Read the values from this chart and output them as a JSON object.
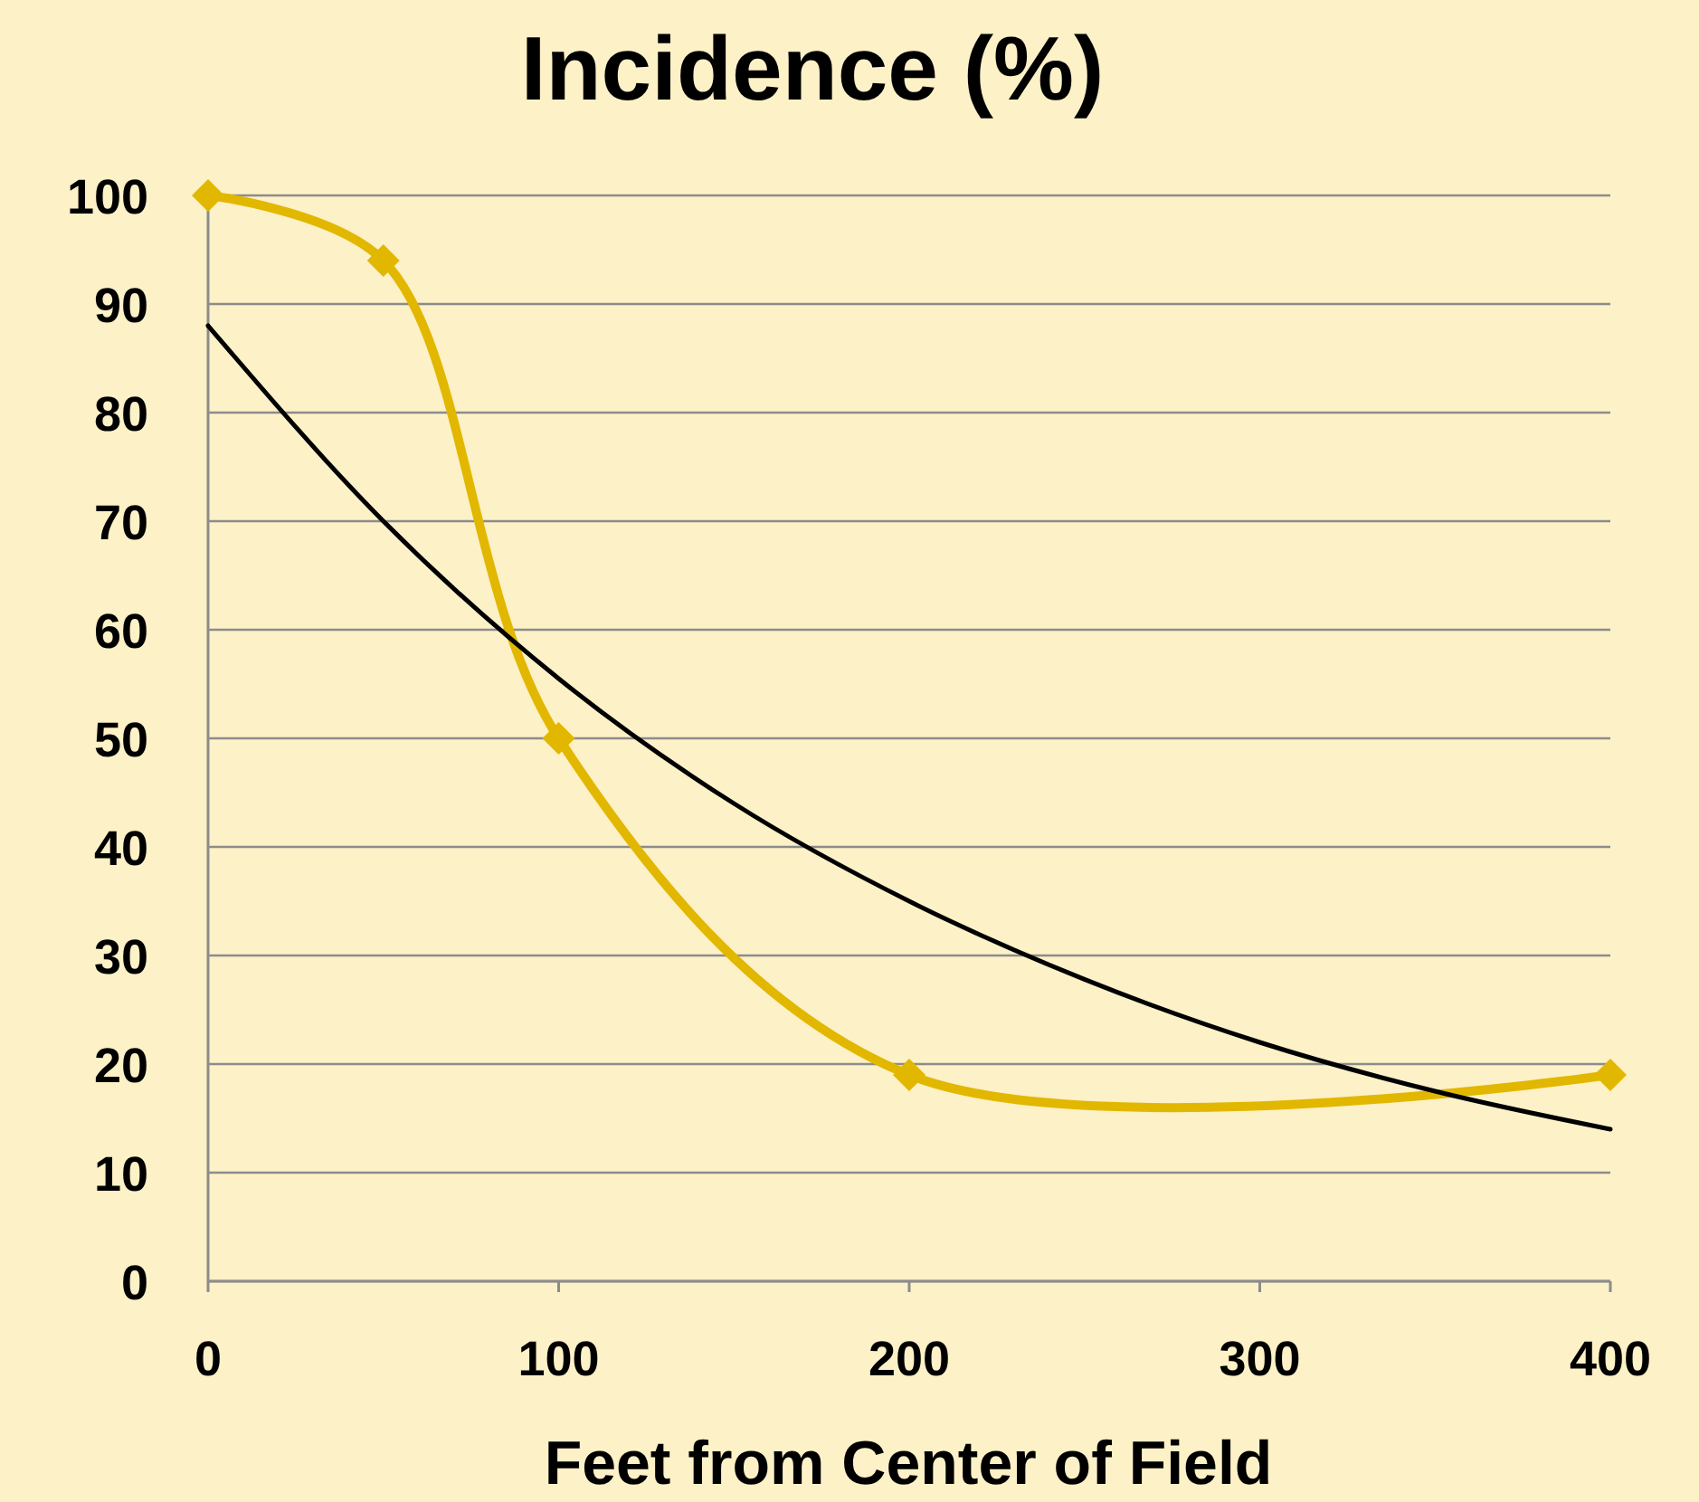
{
  "chart_data": {
    "type": "line",
    "title": "Incidence (%)",
    "xlabel": "Feet from Center of Field",
    "xlim": [
      0,
      400
    ],
    "xticks": [
      0,
      100,
      200,
      300,
      400
    ],
    "ylim": [
      0,
      100
    ],
    "yticks": [
      0,
      10,
      20,
      30,
      40,
      50,
      60,
      70,
      80,
      90,
      100
    ],
    "grid": "y",
    "series": [
      {
        "color": "#e2b700",
        "x": [
          0,
          50,
          100,
          200,
          400
        ],
        "values": [
          100,
          94,
          50,
          19,
          19
        ],
        "marker": "diamond"
      },
      {
        "type": "line",
        "color": "#000000",
        "marker": "none",
        "x": [
          0,
          50,
          100,
          150,
          200,
          250,
          300,
          350,
          400
        ],
        "values": [
          88,
          70,
          55.5,
          44,
          35,
          27.8,
          22,
          17.5,
          14
        ]
      }
    ]
  }
}
